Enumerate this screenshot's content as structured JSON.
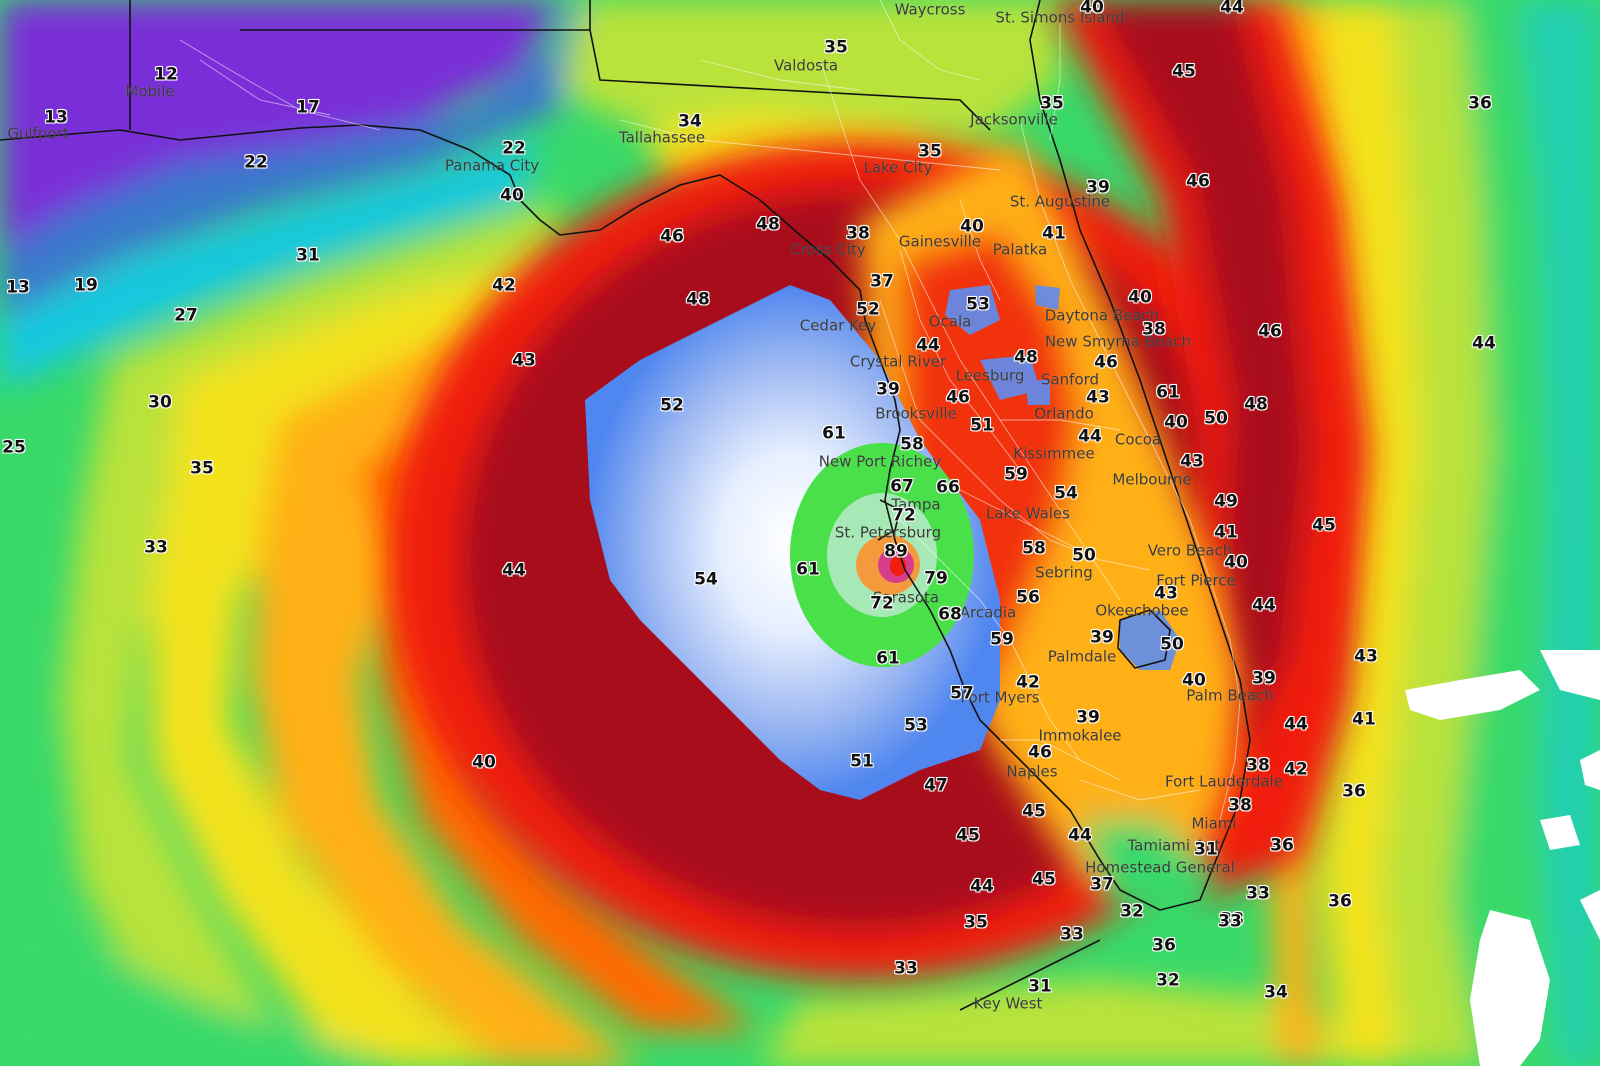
{
  "colors": {
    "gust_scale": [
      "#7a2fd8",
      "#3b6fd6",
      "#14c8e0",
      "#38d96a",
      "#b9e23a",
      "#f3e21d",
      "#ffb014",
      "#ff6a00",
      "#f01c0e",
      "#a80c1a",
      "#5e8df0",
      "#c9d8f4",
      "#e6efff",
      "#49e04a",
      "#f59a3c",
      "#d63d8a"
    ],
    "land_line": "#111111",
    "road_line": "#ffffff",
    "label_text": "#111111",
    "city_text": "#3a3a3a"
  },
  "cities": [
    {
      "name": "Waycross"
    },
    {
      "name": "St. Simons Island"
    },
    {
      "name": "Valdosta"
    },
    {
      "name": "Mobile"
    },
    {
      "name": "Gulfport"
    },
    {
      "name": "Tallahassee"
    },
    {
      "name": "Jacksonville"
    },
    {
      "name": "Panama City"
    },
    {
      "name": "Lake City"
    },
    {
      "name": "St. Augustine"
    },
    {
      "name": "Cross City"
    },
    {
      "name": "Gainesville"
    },
    {
      "name": "Palatka"
    },
    {
      "name": "Cedar Key"
    },
    {
      "name": "Ocala"
    },
    {
      "name": "Daytona Beach"
    },
    {
      "name": "New Smyrna Beach"
    },
    {
      "name": "Crystal River"
    },
    {
      "name": "Leesburg"
    },
    {
      "name": "Sanford"
    },
    {
      "name": "Brooksville"
    },
    {
      "name": "Orlando"
    },
    {
      "name": "Cocoa"
    },
    {
      "name": "New Port Richey"
    },
    {
      "name": "Kissimmee"
    },
    {
      "name": "Melbourne"
    },
    {
      "name": "Tampa"
    },
    {
      "name": "Lake Wales"
    },
    {
      "name": "St. Petersburg"
    },
    {
      "name": "Vero Beach"
    },
    {
      "name": "Sebring"
    },
    {
      "name": "Fort Pierce"
    },
    {
      "name": "Sarasota"
    },
    {
      "name": "Arcadia"
    },
    {
      "name": "Okeechobee"
    },
    {
      "name": "Palmdale"
    },
    {
      "name": "Fort Myers"
    },
    {
      "name": "Palm Beach"
    },
    {
      "name": "Immokalee"
    },
    {
      "name": "Naples"
    },
    {
      "name": "Fort Lauderdale"
    },
    {
      "name": "Miami"
    },
    {
      "name": "Tamiami Apt"
    },
    {
      "name": "Homestead General"
    },
    {
      "name": "Key West"
    }
  ],
  "values": [
    {
      "v": "40"
    },
    {
      "v": "44"
    },
    {
      "v": "35"
    },
    {
      "v": "45"
    },
    {
      "v": "36"
    },
    {
      "v": "12"
    },
    {
      "v": "13"
    },
    {
      "v": "17"
    },
    {
      "v": "34"
    },
    {
      "v": "35"
    },
    {
      "v": "22"
    },
    {
      "v": "22"
    },
    {
      "v": "35"
    },
    {
      "v": "39"
    },
    {
      "v": "46"
    },
    {
      "v": "40"
    },
    {
      "v": "48"
    },
    {
      "v": "46"
    },
    {
      "v": "40"
    },
    {
      "v": "41"
    },
    {
      "v": "38"
    },
    {
      "v": "31"
    },
    {
      "v": "19"
    },
    {
      "v": "13"
    },
    {
      "v": "42"
    },
    {
      "v": "48"
    },
    {
      "v": "37"
    },
    {
      "v": "27"
    },
    {
      "v": "52"
    },
    {
      "v": "53"
    },
    {
      "v": "40"
    },
    {
      "v": "38"
    },
    {
      "v": "46"
    },
    {
      "v": "44"
    },
    {
      "v": "43"
    },
    {
      "v": "44"
    },
    {
      "v": "48"
    },
    {
      "v": "46"
    },
    {
      "v": "61"
    },
    {
      "v": "39"
    },
    {
      "v": "46"
    },
    {
      "v": "43"
    },
    {
      "v": "30"
    },
    {
      "v": "52"
    },
    {
      "v": "48"
    },
    {
      "v": "51"
    },
    {
      "v": "40"
    },
    {
      "v": "50"
    },
    {
      "v": "61"
    },
    {
      "v": "58"
    },
    {
      "v": "44"
    },
    {
      "v": "25"
    },
    {
      "v": "35"
    },
    {
      "v": "59"
    },
    {
      "v": "43"
    },
    {
      "v": "67"
    },
    {
      "v": "66"
    },
    {
      "v": "54"
    },
    {
      "v": "49"
    },
    {
      "v": "72"
    },
    {
      "v": "45"
    },
    {
      "v": "41"
    },
    {
      "v": "33"
    },
    {
      "v": "89"
    },
    {
      "v": "58"
    },
    {
      "v": "50"
    },
    {
      "v": "40"
    },
    {
      "v": "44"
    },
    {
      "v": "54"
    },
    {
      "v": "61"
    },
    {
      "v": "79"
    },
    {
      "v": "43"
    },
    {
      "v": "72"
    },
    {
      "v": "68"
    },
    {
      "v": "56"
    },
    {
      "v": "44"
    },
    {
      "v": "59"
    },
    {
      "v": "39"
    },
    {
      "v": "50"
    },
    {
      "v": "61"
    },
    {
      "v": "43"
    },
    {
      "v": "42"
    },
    {
      "v": "40"
    },
    {
      "v": "39"
    },
    {
      "v": "57"
    },
    {
      "v": "41"
    },
    {
      "v": "53"
    },
    {
      "v": "39"
    },
    {
      "v": "44"
    },
    {
      "v": "46"
    },
    {
      "v": "40"
    },
    {
      "v": "51"
    },
    {
      "v": "38"
    },
    {
      "v": "42"
    },
    {
      "v": "47"
    },
    {
      "v": "36"
    },
    {
      "v": "45"
    },
    {
      "v": "38"
    },
    {
      "v": "45"
    },
    {
      "v": "44"
    },
    {
      "v": "31"
    },
    {
      "v": "36"
    },
    {
      "v": "44"
    },
    {
      "v": "45"
    },
    {
      "v": "37"
    },
    {
      "v": "33"
    },
    {
      "v": "36"
    },
    {
      "v": "38"
    },
    {
      "v": "32"
    },
    {
      "v": "33"
    },
    {
      "v": "35"
    },
    {
      "v": "33"
    },
    {
      "v": "36"
    },
    {
      "v": "33"
    },
    {
      "v": "31"
    },
    {
      "v": "32"
    },
    {
      "v": "34"
    }
  ]
}
